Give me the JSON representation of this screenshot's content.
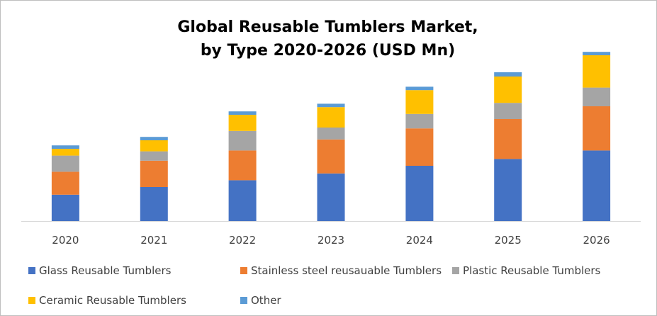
{
  "chart_data": {
    "type": "bar",
    "stacked": true,
    "title_lines": [
      "Global Reusable Tumblers Market,",
      "by Type 2020-2026 (USD Mn)"
    ],
    "categories": [
      "2020",
      "2021",
      "2022",
      "2023",
      "2024",
      "2025",
      "2026"
    ],
    "ylim": [
      0,
      200
    ],
    "grid": false,
    "legend_position": "bottom",
    "series": [
      {
        "name": "Glass Reusable Tumblers",
        "color": "#4472c4",
        "values": [
          31,
          40,
          48,
          56,
          65,
          73,
          83
        ]
      },
      {
        "name": "Stainless steel reusauable Tumblers",
        "color": "#ed7d31",
        "values": [
          27,
          31,
          35,
          40,
          44,
          47,
          52
        ]
      },
      {
        "name": "Plastic Reusable Tumblers",
        "color": "#a5a5a5",
        "values": [
          19,
          11,
          23,
          14,
          17,
          19,
          22
        ]
      },
      {
        "name": "Ceramic Reusable Tumblers",
        "color": "#ffc000",
        "values": [
          8,
          13,
          19,
          24,
          28,
          31,
          38
        ]
      },
      {
        "name": "Other",
        "color": "#5b9bd5",
        "values": [
          4,
          4,
          4,
          4,
          4,
          5,
          4
        ]
      }
    ]
  }
}
